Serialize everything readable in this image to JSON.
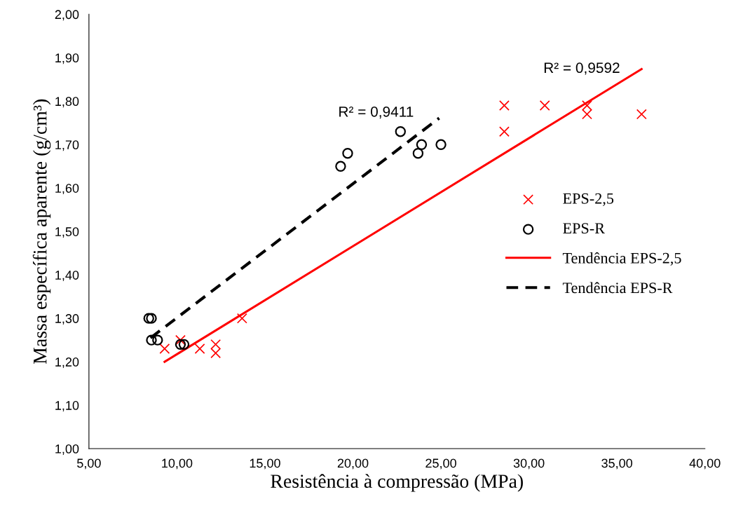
{
  "chart_data": {
    "type": "scatter",
    "xlabel": "Resistência à compressão (MPa)",
    "ylabel": "Massa específica aparente (g/cm³)",
    "xlim": [
      5,
      40
    ],
    "ylim": [
      1,
      2
    ],
    "xticks": [
      {
        "value": 5,
        "label": "5,00"
      },
      {
        "value": 10,
        "label": "10,00"
      },
      {
        "value": 15,
        "label": "15,00"
      },
      {
        "value": 20,
        "label": "20,00"
      },
      {
        "value": 25,
        "label": "25,00"
      },
      {
        "value": 30,
        "label": "30,00"
      },
      {
        "value": 35,
        "label": "35,00"
      },
      {
        "value": 40,
        "label": "40,00"
      }
    ],
    "yticks": [
      {
        "value": 1.0,
        "label": "1,00"
      },
      {
        "value": 1.1,
        "label": "1,10"
      },
      {
        "value": 1.2,
        "label": "1,20"
      },
      {
        "value": 1.3,
        "label": "1,30"
      },
      {
        "value": 1.4,
        "label": "1,40"
      },
      {
        "value": 1.5,
        "label": "1,50"
      },
      {
        "value": 1.6,
        "label": "1,60"
      },
      {
        "value": 1.7,
        "label": "1,70"
      },
      {
        "value": 1.8,
        "label": "1,80"
      },
      {
        "value": 1.9,
        "label": "1,90"
      },
      {
        "value": 2.0,
        "label": "2,00"
      }
    ],
    "grid": false,
    "legend": "right",
    "series": [
      {
        "name": "EPS-2,5",
        "marker": "cross",
        "color": "#ff0000",
        "x": [
          9.3,
          10.2,
          11.3,
          12.2,
          12.2,
          13.7,
          28.6,
          28.6,
          30.9,
          33.3,
          33.3,
          36.4
        ],
        "values": [
          1.23,
          1.25,
          1.23,
          1.24,
          1.22,
          1.3,
          1.79,
          1.73,
          1.79,
          1.79,
          1.77,
          1.77
        ]
      },
      {
        "name": "EPS-R",
        "marker": "circle",
        "color": "#000000",
        "x": [
          8.4,
          8.55,
          8.55,
          8.9,
          10.2,
          10.4,
          19.3,
          19.7,
          22.7,
          23.7,
          23.9,
          25.0
        ],
        "values": [
          1.3,
          1.3,
          1.25,
          1.25,
          1.24,
          1.24,
          1.65,
          1.68,
          1.73,
          1.68,
          1.7,
          1.7
        ]
      },
      {
        "name": "Tendência EPS-2,5",
        "type": "line",
        "line_style": "solid",
        "color": "#ff0000",
        "x": [
          9.3,
          36.4
        ],
        "values": [
          1.2,
          1.874
        ]
      },
      {
        "name": "Tendência EPS-R",
        "type": "line",
        "line_style": "dashed",
        "color": "#000000",
        "x": [
          8.5,
          24.9
        ],
        "values": [
          1.255,
          1.761
        ]
      }
    ],
    "annotations": [
      "R² = 0,9411",
      "R² = 0,9592"
    ]
  }
}
